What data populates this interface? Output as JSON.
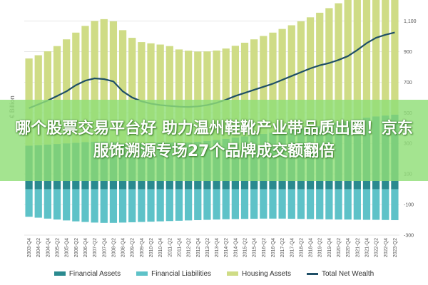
{
  "banner": {
    "headline": "哪个股票交易平台好 助力温州鞋靴产业带品质出圈！京东服饰溯源专场27个品牌成交额翻倍"
  },
  "chart_data": {
    "type": "bar",
    "ylabel": "€ Billion",
    "ylim": [
      -300,
      1200
    ],
    "yticks": [
      -300,
      -100,
      100,
      300,
      500,
      700,
      900,
      1100
    ],
    "ytick_labels": [
      "-300",
      "-100",
      "100",
      "300",
      "500",
      "700",
      "900",
      "1,100"
    ],
    "grid": true,
    "legend_position": "bottom",
    "categories": [
      "2003-Q4",
      "2004-Q2",
      "2004-Q4",
      "2005-Q2",
      "2005-Q4",
      "2006-Q2",
      "2006-Q4",
      "2007-Q2",
      "2007-Q4",
      "2008-Q2",
      "2008-Q4",
      "2009-Q2",
      "2009-Q4",
      "2010-Q2",
      "2010-Q4",
      "2011-Q2",
      "2011-Q4",
      "2012-Q2",
      "2012-Q4",
      "2013-Q2",
      "2013-Q4",
      "2014-Q2",
      "2014-Q4",
      "2015-Q2",
      "2015-Q4",
      "2016-Q2",
      "2016-Q4",
      "2017-Q2",
      "2017-Q4",
      "2018-Q2",
      "2018-Q4",
      "2019-Q2",
      "2019-Q4",
      "2020-Q2",
      "2020-Q4",
      "2021-Q2",
      "2021-Q4",
      "2022-Q2",
      "2022-Q4",
      "2023-Q2"
    ],
    "series": [
      {
        "name": "Financial Assets",
        "color": "#2a8a8f",
        "values": [
          285,
          288,
          292,
          296,
          300,
          304,
          308,
          310,
          312,
          308,
          300,
          300,
          302,
          304,
          306,
          306,
          304,
          306,
          310,
          316,
          322,
          330,
          338,
          346,
          354,
          362,
          370,
          380,
          388,
          396,
          404,
          414,
          424,
          434,
          444,
          456,
          468,
          476,
          482,
          488
        ]
      },
      {
        "name": "Financial Liabilities",
        "color": "#5ec2c8",
        "values": [
          -180,
          -186,
          -192,
          -198,
          -204,
          -210,
          -214,
          -218,
          -220,
          -220,
          -218,
          -216,
          -214,
          -212,
          -210,
          -208,
          -206,
          -204,
          -202,
          -200,
          -198,
          -196,
          -195,
          -194,
          -193,
          -192,
          -192,
          -192,
          -193,
          -194,
          -195,
          -196,
          -197,
          -198,
          -198,
          -199,
          -200,
          -200,
          -201,
          -202
        ]
      },
      {
        "name": "Housing Assets",
        "color": "#cfdc86",
        "values": [
          570,
          588,
          610,
          640,
          680,
          720,
          760,
          790,
          800,
          790,
          740,
          690,
          660,
          650,
          640,
          630,
          610,
          600,
          590,
          585,
          585,
          590,
          600,
          612,
          626,
          640,
          654,
          668,
          684,
          702,
          720,
          740,
          760,
          782,
          810,
          850,
          890,
          910,
          920,
          925
        ]
      },
      {
        "name": "Total Net Wealth",
        "color": "#1f4f67",
        "values": [
          530,
          555,
          580,
          610,
          640,
          680,
          710,
          725,
          720,
          705,
          640,
          600,
          575,
          560,
          550,
          545,
          540,
          538,
          542,
          550,
          565,
          585,
          610,
          630,
          650,
          670,
          690,
          715,
          740,
          765,
          790,
          810,
          825,
          845,
          870,
          910,
          955,
          990,
          1010,
          1025
        ]
      }
    ]
  }
}
